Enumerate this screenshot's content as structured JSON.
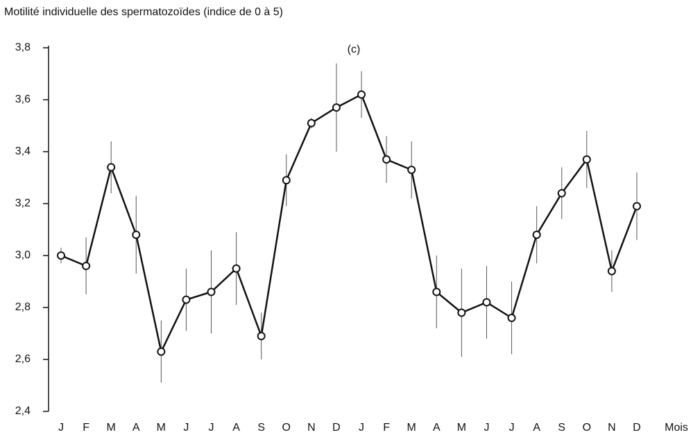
{
  "chart_data": {
    "type": "line",
    "title": "Motilité individuelle des spermatozoïdes (indice de 0 à 5)",
    "subtitle": "(c)",
    "x_label": "Mois",
    "categories": [
      "J",
      "F",
      "M",
      "A",
      "M",
      "J",
      "J",
      "A",
      "S",
      "O",
      "N",
      "D",
      "J",
      "F",
      "M",
      "A",
      "M",
      "J",
      "J",
      "A",
      "S",
      "O",
      "N",
      "D"
    ],
    "values": [
      3.0,
      2.96,
      3.34,
      3.08,
      2.63,
      2.83,
      2.86,
      2.95,
      2.69,
      3.29,
      3.51,
      3.57,
      3.62,
      3.37,
      3.33,
      2.86,
      2.78,
      2.82,
      2.76,
      3.08,
      3.24,
      3.37,
      2.94,
      3.19
    ],
    "errors": [
      0.03,
      0.11,
      0.1,
      0.15,
      0.12,
      0.12,
      0.16,
      0.14,
      0.09,
      0.1,
      0.02,
      0.17,
      0.09,
      0.09,
      0.11,
      0.14,
      0.17,
      0.14,
      0.14,
      0.11,
      0.1,
      0.11,
      0.08,
      0.13
    ],
    "color": "#111111",
    "ylim": [
      2.4,
      3.8
    ],
    "yticks": [
      {
        "value": 2.4,
        "label": "2,4"
      },
      {
        "value": 2.6,
        "label": "2,6"
      },
      {
        "value": 2.8,
        "label": "2,8"
      },
      {
        "value": 3.0,
        "label": "3,0"
      },
      {
        "value": 3.2,
        "label": "3,2"
      },
      {
        "value": 3.4,
        "label": "3,4"
      },
      {
        "value": 3.6,
        "label": "3,6"
      },
      {
        "value": 3.8,
        "label": "3,8"
      }
    ]
  }
}
